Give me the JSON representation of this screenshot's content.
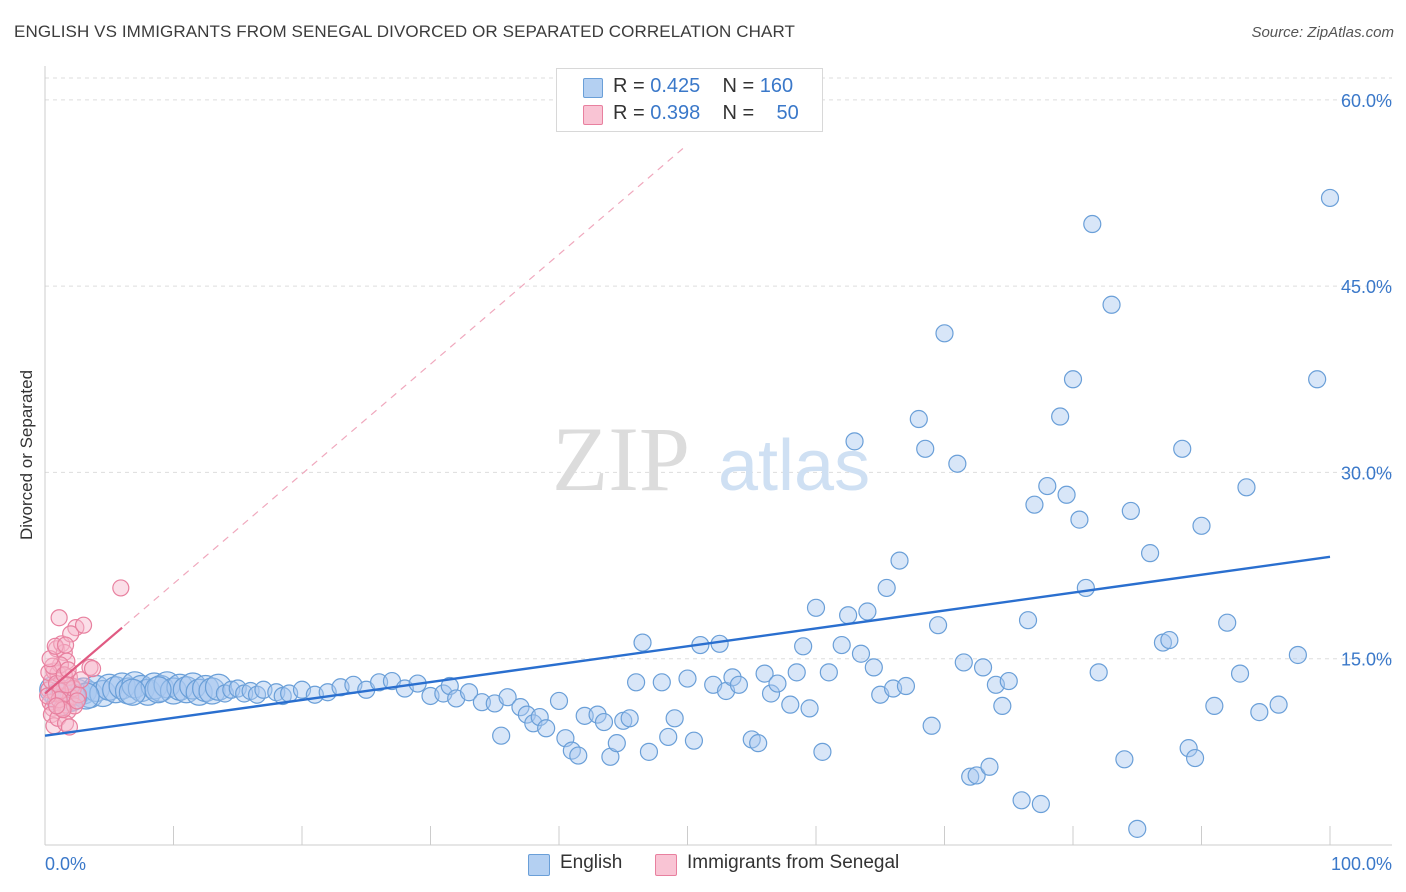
{
  "header": {
    "title": "ENGLISH VS IMMIGRANTS FROM SENEGAL DIVORCED OR SEPARATED CORRELATION CHART",
    "source": "Source: ZipAtlas.com"
  },
  "watermark": {
    "zip": "ZIP",
    "atlas": "atlas"
  },
  "legend_top": [
    {
      "r_label": "R = ",
      "r_value": "0.425",
      "n_label": "N = ",
      "n_value": "160"
    },
    {
      "r_label": "R = ",
      "r_value": "0.398",
      "n_label": "N = ",
      "n_value": "50"
    }
  ],
  "legend_bottom": [
    "English",
    "Immigrants from Senegal"
  ],
  "colors": {
    "english_fill": "#a8c8f0",
    "english_stroke": "#6a9fd8",
    "english_line": "#2a6fcf",
    "senegal_fill": "#f7b8cc",
    "senegal_stroke": "#e8809f",
    "senegal_line": "#e05a82",
    "grid": "#dddddd",
    "axis_text": "#3a78c9"
  },
  "chart_data": {
    "type": "scatter",
    "title": "ENGLISH VS IMMIGRANTS FROM SENEGAL DIVORCED OR SEPARATED CORRELATION CHART",
    "xlabel": "",
    "ylabel": "Divorced or Separated",
    "xlim": [
      0,
      100
    ],
    "ylim": [
      0,
      62
    ],
    "x_ticks": [
      "0.0%",
      "100.0%"
    ],
    "y_ticks": [
      {
        "value": 15,
        "label": "15.0%"
      },
      {
        "value": 30,
        "label": "30.0%"
      },
      {
        "value": 45,
        "label": "45.0%"
      },
      {
        "value": 60,
        "label": "60.0%"
      }
    ],
    "grid": true,
    "legend_position": "top-center",
    "series": [
      {
        "name": "English",
        "r": 0.425,
        "n": 160,
        "trend": {
          "x": [
            0,
            100
          ],
          "y": [
            8.8,
            23.2
          ]
        },
        "points": [
          [
            0.6,
            12.5
          ],
          [
            1.0,
            12.0
          ],
          [
            1.5,
            12.2
          ],
          [
            2,
            11.8
          ],
          [
            2.5,
            12.3
          ],
          [
            3,
            12.4
          ],
          [
            3.5,
            12.1
          ],
          [
            4,
            12.6
          ],
          [
            4.5,
            12.2
          ],
          [
            5,
            12.7
          ],
          [
            5.5,
            12.5
          ],
          [
            6,
            12.8
          ],
          [
            6.5,
            12.4
          ],
          [
            7,
            12.9
          ],
          [
            7.5,
            12.6
          ],
          [
            8,
            12.3
          ],
          [
            8.5,
            12.8
          ],
          [
            9,
            12.6
          ],
          [
            9.5,
            12.9
          ],
          [
            10,
            12.4
          ],
          [
            10.5,
            12.7
          ],
          [
            11,
            12.5
          ],
          [
            11.5,
            12.8
          ],
          [
            12,
            12.3
          ],
          [
            12.5,
            12.6
          ],
          [
            13,
            12.4
          ],
          [
            13.5,
            12.7
          ],
          [
            14,
            12.2
          ],
          [
            14.5,
            12.5
          ],
          [
            15,
            12.6
          ],
          [
            15.5,
            12.2
          ],
          [
            16,
            12.4
          ],
          [
            16.5,
            12.1
          ],
          [
            17,
            12.5
          ],
          [
            18,
            12.3
          ],
          [
            18.5,
            12.0
          ],
          [
            19,
            12.2
          ],
          [
            20,
            12.5
          ],
          [
            21,
            12.1
          ],
          [
            22,
            12.3
          ],
          [
            23,
            12.7
          ],
          [
            24,
            12.9
          ],
          [
            25,
            12.5
          ],
          [
            26,
            13.1
          ],
          [
            27,
            13.2
          ],
          [
            28,
            12.6
          ],
          [
            29,
            13.0
          ],
          [
            30,
            12.0
          ],
          [
            31,
            12.2
          ],
          [
            31.5,
            12.8
          ],
          [
            32,
            11.8
          ],
          [
            33,
            12.3
          ],
          [
            34,
            11.5
          ],
          [
            35,
            11.4
          ],
          [
            35.5,
            8.8
          ],
          [
            36,
            11.9
          ],
          [
            37,
            11.1
          ],
          [
            37.5,
            10.5
          ],
          [
            38,
            9.8
          ],
          [
            38.5,
            10.3
          ],
          [
            39,
            9.4
          ],
          [
            40,
            11.6
          ],
          [
            40.5,
            8.6
          ],
          [
            41,
            7.6
          ],
          [
            41.5,
            7.2
          ],
          [
            42,
            10.4
          ],
          [
            43,
            10.5
          ],
          [
            43.5,
            9.9
          ],
          [
            44,
            7.1
          ],
          [
            44.5,
            8.2
          ],
          [
            45,
            10.0
          ],
          [
            45.5,
            10.2
          ],
          [
            46,
            13.1
          ],
          [
            46.5,
            16.3
          ],
          [
            47,
            7.5
          ],
          [
            48,
            13.1
          ],
          [
            48.5,
            8.7
          ],
          [
            49,
            10.2
          ],
          [
            50,
            13.4
          ],
          [
            50.5,
            8.4
          ],
          [
            51,
            16.1
          ],
          [
            52,
            12.9
          ],
          [
            52.5,
            16.2
          ],
          [
            53,
            12.4
          ],
          [
            53.5,
            13.5
          ],
          [
            54,
            12.9
          ],
          [
            55,
            8.5
          ],
          [
            55.5,
            8.2
          ],
          [
            56,
            13.8
          ],
          [
            56.5,
            12.2
          ],
          [
            57,
            13.0
          ],
          [
            58,
            11.3
          ],
          [
            58.5,
            13.9
          ],
          [
            59,
            16.0
          ],
          [
            59.5,
            11.0
          ],
          [
            60,
            19.1
          ],
          [
            60.5,
            7.5
          ],
          [
            61,
            13.9
          ],
          [
            62,
            16.1
          ],
          [
            62.5,
            18.5
          ],
          [
            63,
            32.5
          ],
          [
            63.5,
            15.4
          ],
          [
            64,
            18.8
          ],
          [
            64.5,
            14.3
          ],
          [
            65,
            12.1
          ],
          [
            65.5,
            20.7
          ],
          [
            66,
            12.6
          ],
          [
            66.5,
            22.9
          ],
          [
            67,
            12.8
          ],
          [
            68,
            34.3
          ],
          [
            68.5,
            31.9
          ],
          [
            69,
            9.6
          ],
          [
            69.5,
            17.7
          ],
          [
            70,
            41.2
          ],
          [
            71,
            30.7
          ],
          [
            71.5,
            14.7
          ],
          [
            72,
            5.5
          ],
          [
            72.5,
            5.6
          ],
          [
            73,
            14.3
          ],
          [
            73.5,
            6.3
          ],
          [
            74,
            12.9
          ],
          [
            74.5,
            11.2
          ],
          [
            75,
            13.2
          ],
          [
            76,
            3.6
          ],
          [
            76.5,
            18.1
          ],
          [
            77,
            27.4
          ],
          [
            77.5,
            3.3
          ],
          [
            78,
            28.9
          ],
          [
            79,
            34.5
          ],
          [
            79.5,
            28.2
          ],
          [
            80,
            37.5
          ],
          [
            80.5,
            26.2
          ],
          [
            81,
            20.7
          ],
          [
            81.5,
            50.0
          ],
          [
            82,
            13.9
          ],
          [
            83,
            43.5
          ],
          [
            84,
            6.9
          ],
          [
            84.5,
            26.9
          ],
          [
            85,
            1.3
          ],
          [
            86,
            23.5
          ],
          [
            87,
            16.3
          ],
          [
            87.5,
            16.5
          ],
          [
            88.5,
            31.9
          ],
          [
            89,
            7.8
          ],
          [
            89.5,
            7.0
          ],
          [
            90,
            25.7
          ],
          [
            91,
            11.2
          ],
          [
            92,
            17.9
          ],
          [
            93,
            13.8
          ],
          [
            93.5,
            28.8
          ],
          [
            94.5,
            10.7
          ],
          [
            96,
            11.3
          ],
          [
            97.5,
            15.3
          ],
          [
            99,
            37.5
          ],
          [
            100,
            52.1
          ],
          [
            1.2,
            11.5
          ],
          [
            3.2,
            12.0
          ],
          [
            2.2,
            11.9
          ],
          [
            6.8,
            12.3
          ],
          [
            8.8,
            12.5
          ]
        ]
      },
      {
        "name": "Immigrants from Senegal",
        "r": 0.398,
        "n": 50,
        "trend": {
          "x": [
            0,
            6
          ],
          "y": [
            12.2,
            17.5
          ]
        },
        "trend_extended": {
          "x": [
            0,
            50
          ],
          "y": [
            12.2,
            56.4
          ]
        },
        "points": [
          [
            0.3,
            12.5
          ],
          [
            0.5,
            13.2
          ],
          [
            0.7,
            14.0
          ],
          [
            0.9,
            15.8
          ],
          [
            1.1,
            18.3
          ],
          [
            1.3,
            16.2
          ],
          [
            1.5,
            15.5
          ],
          [
            1.7,
            14.8
          ],
          [
            1.9,
            13.5
          ],
          [
            2.1,
            12.8
          ],
          [
            0.4,
            11.5
          ],
          [
            0.6,
            11.0
          ],
          [
            0.8,
            12.2
          ],
          [
            1.0,
            13.8
          ],
          [
            1.2,
            14.5
          ],
          [
            1.4,
            12.0
          ],
          [
            1.6,
            11.3
          ],
          [
            1.8,
            10.8
          ],
          [
            2.0,
            11.9
          ],
          [
            2.2,
            12.6
          ],
          [
            0.5,
            10.5
          ],
          [
            0.7,
            9.6
          ],
          [
            1.0,
            10.2
          ],
          [
            1.3,
            11.0
          ],
          [
            1.6,
            9.8
          ],
          [
            1.9,
            9.5
          ],
          [
            2.3,
            11.2
          ],
          [
            2.6,
            12.1
          ],
          [
            0.3,
            13.9
          ],
          [
            0.6,
            14.4
          ],
          [
            0.9,
            13.0
          ],
          [
            1.2,
            12.4
          ],
          [
            1.5,
            13.7
          ],
          [
            1.8,
            14.1
          ],
          [
            2.4,
            17.5
          ],
          [
            2.8,
            13.3
          ],
          [
            3.5,
            14.3
          ],
          [
            3.7,
            14.2
          ],
          [
            5.9,
            20.7
          ],
          [
            2.0,
            17.0
          ],
          [
            0.4,
            15.0
          ],
          [
            0.8,
            16.0
          ],
          [
            1.1,
            11.7
          ],
          [
            1.4,
            10.9
          ],
          [
            1.7,
            12.9
          ],
          [
            2.5,
            11.6
          ],
          [
            0.2,
            12.0
          ],
          [
            0.9,
            11.2
          ],
          [
            1.6,
            16.1
          ],
          [
            3.0,
            17.7
          ]
        ]
      }
    ]
  }
}
